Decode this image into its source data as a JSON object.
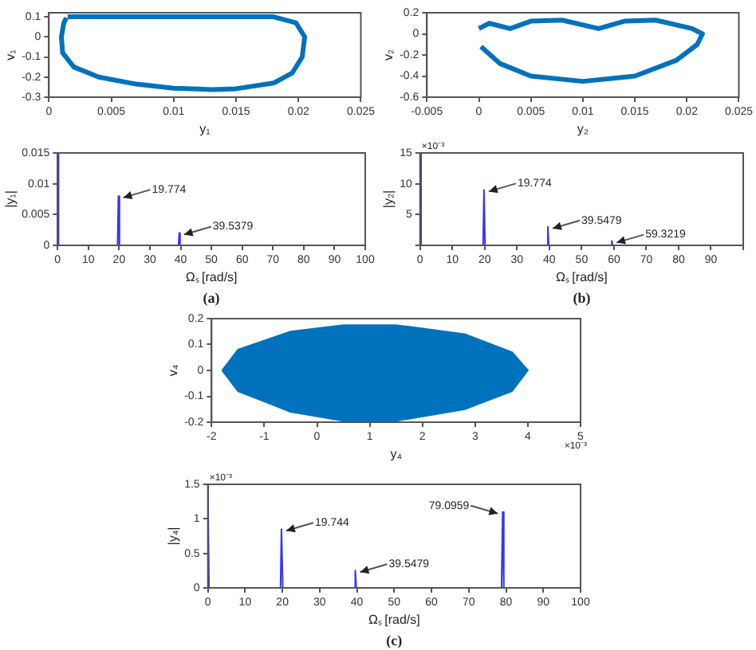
{
  "chart_data": [
    {
      "type": "line",
      "xlabel": "y₁",
      "ylabel": "v₁",
      "xlim": [
        0,
        0.025
      ],
      "xticks": [
        0,
        0.005,
        0.01,
        0.015,
        0.02,
        0.025
      ],
      "ylim": [
        -0.3,
        0.12
      ],
      "yticks": [
        -0.3,
        -0.2,
        -0.1,
        0,
        0.1
      ],
      "grid": false,
      "legend": false,
      "marker": "none",
      "series": [
        {
          "color": "#0072bd",
          "x": [
            0.0015,
            0.018,
            0.0198,
            0.0205,
            0.0203,
            0.0195,
            0.018,
            0.015,
            0.013,
            0.01,
            0.007,
            0.004,
            0.002,
            0.0011,
            0.001,
            0.0012,
            0.0014
          ],
          "values": [
            0.1,
            0.1,
            0.07,
            0,
            -0.1,
            -0.18,
            -0.23,
            -0.258,
            -0.262,
            -0.255,
            -0.235,
            -0.2,
            -0.15,
            -0.08,
            0,
            0.07,
            0.095
          ]
        }
      ]
    },
    {
      "type": "line",
      "xlabel": "Ωₛ [rad/s]",
      "ylabel": "|y₁|",
      "xlim": [
        0,
        100
      ],
      "xticks": [
        0,
        10,
        20,
        30,
        40,
        50,
        60,
        70,
        80,
        90,
        100
      ],
      "ylim": [
        0,
        0.015
      ],
      "yticks": [
        0,
        0.005,
        0.01,
        0.015
      ],
      "grid": false,
      "legend": false,
      "marker": "none",
      "series": [
        {
          "color": "#3333ff",
          "x": [
            0,
            0.3,
            19.5,
            19.774,
            20.1,
            39.3,
            39.5379,
            39.8
          ],
          "values": [
            0.015,
            0,
            0,
            0.008,
            0,
            0,
            0.002,
            0
          ]
        }
      ],
      "annotations": [
        {
          "text": "19.774",
          "x": 19.774,
          "y": 0.008
        },
        {
          "text": "39.5379",
          "x": 39.5379,
          "y": 0.002
        },
        "(a)"
      ]
    },
    {
      "type": "line",
      "xlabel": "y₂",
      "ylabel": "v₂",
      "xlim": [
        -0.005,
        0.025
      ],
      "xticks": [
        -0.005,
        0,
        0.005,
        0.01,
        0.015,
        0.02,
        0.025
      ],
      "ylim": [
        -0.6,
        0.2
      ],
      "yticks": [
        -0.6,
        -0.4,
        -0.2,
        0,
        0.2
      ],
      "grid": false,
      "legend": false,
      "marker": "none",
      "series": [
        {
          "color": "#0072bd",
          "x": [
            0,
            0.001,
            0.003,
            0.005,
            0.008,
            0.0115,
            0.014,
            0.017,
            0.0205,
            0.0215,
            0.021,
            0.019,
            0.015,
            0.01,
            0.005,
            0.002,
            0.0002
          ],
          "values": [
            0.05,
            0.1,
            0.05,
            0.12,
            0.13,
            0.05,
            0.12,
            0.13,
            0.05,
            0,
            -0.1,
            -0.25,
            -0.4,
            -0.45,
            -0.4,
            -0.28,
            -0.12
          ]
        }
      ]
    },
    {
      "type": "line",
      "xlabel": "Ωₛ [rad/s]",
      "ylabel": "|y₂|",
      "xlim": [
        0,
        100
      ],
      "xticks": [
        0,
        10,
        20,
        30,
        40,
        50,
        60,
        70,
        80,
        90,
        {
          "value": 100,
          "label": null
        }
      ],
      "ylim": [
        0,
        15
      ],
      "yticks": [
        {
          "value": 0,
          "label": null
        },
        5,
        10,
        15
      ],
      "grid": false,
      "legend": false,
      "marker": "none",
      "series": [
        {
          "color": "#3333ff",
          "x": [
            0,
            0.3,
            19.5,
            19.774,
            20.1,
            39.3,
            39.5479,
            39.8,
            59.1,
            59.3219,
            59.6
          ],
          "values": [
            15,
            0,
            0,
            9,
            0,
            0,
            3,
            0,
            0,
            0.7,
            0
          ]
        }
      ],
      "annotations": [
        "×10⁻³",
        {
          "text": "19.774",
          "x": 19.774,
          "y": 9
        },
        {
          "text": "39.5479",
          "x": 39.5479,
          "y": 3
        },
        {
          "text": "59.3219",
          "x": 59.3219,
          "y": 0.7
        },
        "(b)"
      ]
    },
    {
      "type": "area",
      "xlabel": "y₄",
      "ylabel": "v₄",
      "xlim": [
        -2,
        5
      ],
      "xticks": [
        -2,
        -1,
        0,
        1,
        2,
        3,
        4,
        5
      ],
      "ylim": [
        -0.2,
        0.2
      ],
      "yticks": [
        -0.2,
        -0.1,
        0,
        0.1,
        0.2
      ],
      "grid": false,
      "legend": false,
      "marker": "none",
      "series": [
        {
          "color": "#0072bd",
          "x": [
            -1.8,
            -1.5,
            -0.5,
            0.5,
            1.5,
            2.8,
            3.7,
            4,
            3.7,
            2.8,
            1.5,
            0.5,
            -0.5,
            -1.5,
            -1.8
          ],
          "values": [
            0,
            0.08,
            0.15,
            0.175,
            0.175,
            0.14,
            0.07,
            0,
            -0.08,
            -0.15,
            -0.195,
            -0.195,
            -0.16,
            -0.08,
            0
          ]
        }
      ],
      "annotations": [
        "×10⁻³"
      ]
    },
    {
      "type": "line",
      "xlabel": "Ωₛ [rad/s]",
      "ylabel": "|y₄|",
      "xlim": [
        0,
        100
      ],
      "xticks": [
        0,
        10,
        20,
        30,
        40,
        50,
        60,
        70,
        80,
        90,
        100
      ],
      "ylim": [
        0,
        1.5
      ],
      "yticks": [
        0,
        0.5,
        1,
        1.5
      ],
      "grid": false,
      "legend": false,
      "marker": "none",
      "series": [
        {
          "color": "#3333ff",
          "x": [
            0,
            0.3,
            19.5,
            19.744,
            20.1,
            39.3,
            39.5479,
            39.8,
            78.8,
            79.0959,
            79.4
          ],
          "values": [
            1.5,
            0,
            0,
            0.85,
            0,
            0,
            0.25,
            0,
            0,
            1.1,
            0
          ]
        }
      ],
      "annotations": [
        "×10⁻³",
        {
          "text": "19.744",
          "x": 19.744,
          "y": 0.85
        },
        {
          "text": "39.5479",
          "x": 39.5479,
          "y": 0.25
        },
        {
          "text": "79.0959",
          "x": 79.0959,
          "y": 1.1
        },
        "(c)"
      ]
    }
  ]
}
